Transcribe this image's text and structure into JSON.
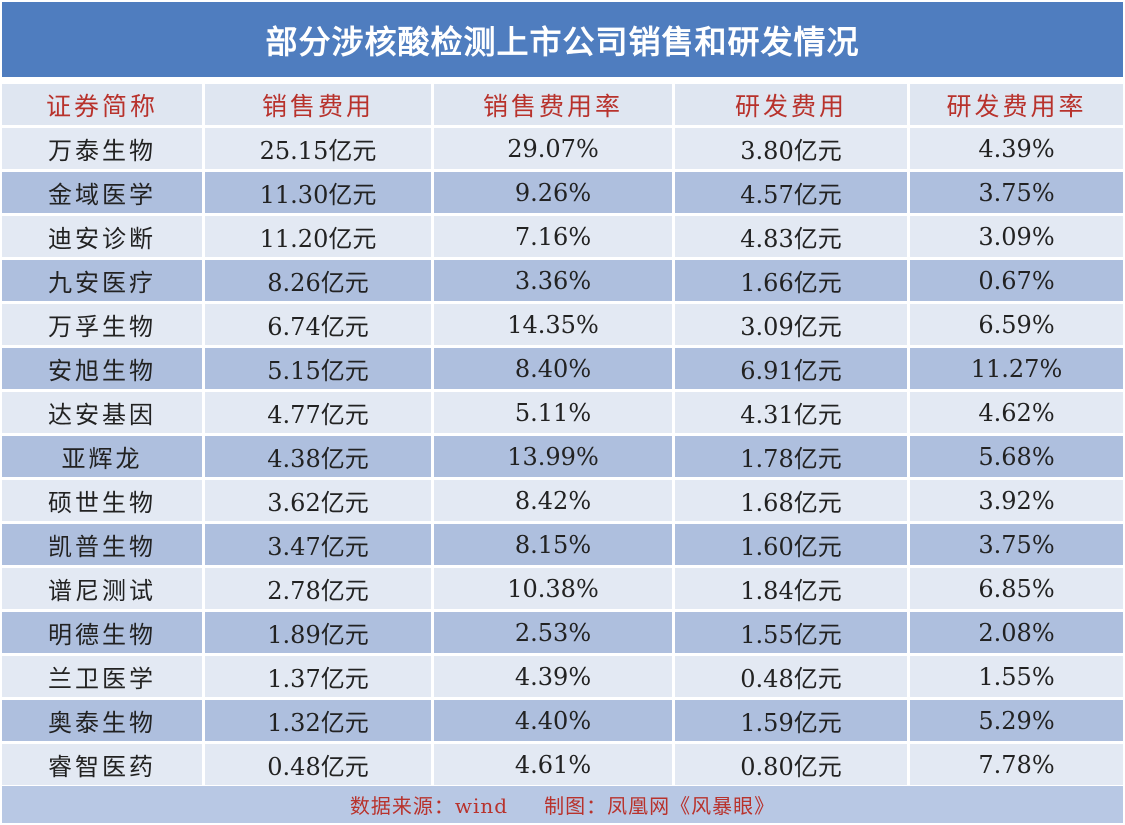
{
  "title": "部分涉核酸检测上市公司销售和研发情况",
  "columns": [
    "证券简称",
    "销售费用",
    "销售费用率",
    "研发费用",
    "研发费用率"
  ],
  "rows": [
    [
      "万泰生物",
      "25.15亿元",
      "29.07%",
      "3.80亿元",
      "4.39%"
    ],
    [
      "金域医学",
      "11.30亿元",
      "9.26%",
      "4.57亿元",
      "3.75%"
    ],
    [
      "迪安诊断",
      "11.20亿元",
      "7.16%",
      "4.83亿元",
      "3.09%"
    ],
    [
      "九安医疗",
      "8.26亿元",
      "3.36%",
      "1.66亿元",
      "0.67%"
    ],
    [
      "万孚生物",
      "6.74亿元",
      "14.35%",
      "3.09亿元",
      "6.59%"
    ],
    [
      "安旭生物",
      "5.15亿元",
      "8.40%",
      "6.91亿元",
      "11.27%"
    ],
    [
      "达安基因",
      "4.77亿元",
      "5.11%",
      "4.31亿元",
      "4.62%"
    ],
    [
      "亚辉龙",
      "4.38亿元",
      "13.99%",
      "1.78亿元",
      "5.68%"
    ],
    [
      "硕世生物",
      "3.62亿元",
      "8.42%",
      "1.68亿元",
      "3.92%"
    ],
    [
      "凯普生物",
      "3.47亿元",
      "8.15%",
      "1.60亿元",
      "3.75%"
    ],
    [
      "谱尼测试",
      "2.78亿元",
      "10.38%",
      "1.84亿元",
      "6.85%"
    ],
    [
      "明德生物",
      "1.89亿元",
      "2.53%",
      "1.55亿元",
      "2.08%"
    ],
    [
      "兰卫医学",
      "1.37亿元",
      "4.39%",
      "0.48亿元",
      "1.55%"
    ],
    [
      "奥泰生物",
      "1.32亿元",
      "4.40%",
      "1.59亿元",
      "5.29%"
    ],
    [
      "睿智医药",
      "0.48亿元",
      "4.61%",
      "0.80亿元",
      "7.78%"
    ]
  ],
  "footer": {
    "source": "数据来源：wind",
    "credit": "制图：凤凰网《风暴眼》"
  },
  "colors": {
    "title_bg": "#4f7dbf",
    "header_text": "#b8322c",
    "row_light": "#e3e9f3",
    "row_dark": "#aebfde",
    "footer_bg": "#b8c8e4"
  }
}
